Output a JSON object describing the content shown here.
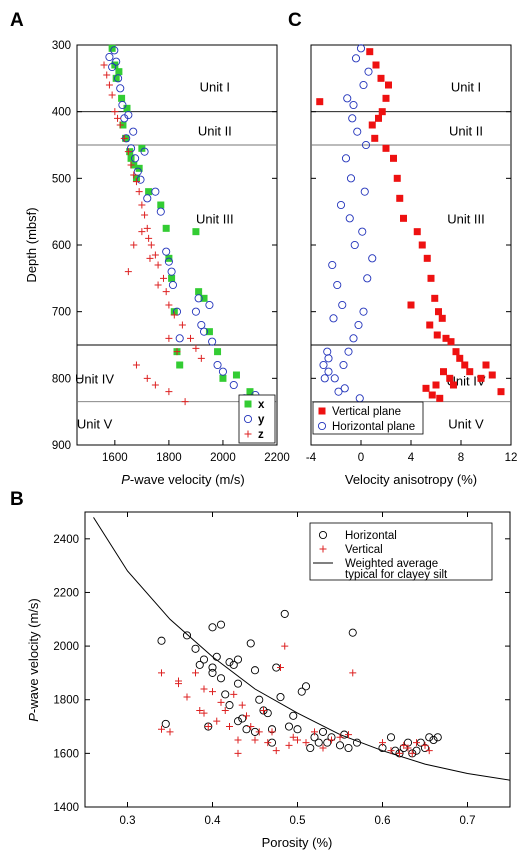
{
  "panels": {
    "A": {
      "letter": "A"
    },
    "C": {
      "letter": "C"
    },
    "B": {
      "letter": "B"
    }
  },
  "chart_data": [
    {
      "id": "A",
      "type": "scatter",
      "title": "",
      "xlabel_italic": "P",
      "xlabel_rest": "-wave velocity (m/s)",
      "ylabel": "Depth (mbsf)",
      "xlim": [
        1460,
        2200
      ],
      "ylim": [
        900,
        300
      ],
      "x_ticks": [
        1600,
        1800,
        2000,
        2200
      ],
      "y_ticks": [
        300,
        400,
        500,
        600,
        700,
        800,
        900
      ],
      "grid": false,
      "legend_position": "bottom-right",
      "unit_boundaries": [
        400,
        450,
        750,
        835
      ],
      "units": [
        {
          "label": "Unit I",
          "x": 1970,
          "y": 362
        },
        {
          "label": "Unit II",
          "x": 1970,
          "y": 428
        },
        {
          "label": "Unit III",
          "x": 1970,
          "y": 560
        },
        {
          "label": "Unit IV",
          "x": 1525,
          "y": 800
        },
        {
          "label": "Unit V",
          "x": 1525,
          "y": 868
        }
      ],
      "series": [
        {
          "name": "x",
          "marker": "square",
          "color": "#33cc33",
          "x": [
            1590,
            1600,
            1605,
            1615,
            1625,
            1630,
            1640,
            1645,
            1655,
            1660,
            1670,
            1680,
            1690,
            1700,
            1725,
            1770,
            1790,
            1800,
            1810,
            1820,
            1830,
            1840,
            1900,
            1910,
            1930,
            1950,
            1980,
            2000,
            2050,
            2100
          ],
          "y": [
            305,
            330,
            350,
            340,
            380,
            420,
            440,
            395,
            460,
            470,
            480,
            500,
            485,
            455,
            520,
            540,
            575,
            620,
            650,
            700,
            760,
            780,
            580,
            670,
            680,
            730,
            760,
            800,
            795,
            820
          ]
        },
        {
          "name": "y",
          "marker": "circle",
          "color": "#2233bb",
          "x": [
            1580,
            1590,
            1598,
            1605,
            1612,
            1620,
            1628,
            1635,
            1642,
            1650,
            1660,
            1668,
            1675,
            1685,
            1695,
            1710,
            1720,
            1750,
            1770,
            1790,
            1800,
            1810,
            1815,
            1830,
            1840,
            1900,
            1910,
            1920,
            1930,
            1950,
            1960,
            1980,
            2000,
            2040,
            2080,
            2120
          ],
          "y": [
            318,
            333,
            308,
            325,
            350,
            365,
            390,
            410,
            440,
            405,
            455,
            430,
            470,
            490,
            502,
            460,
            530,
            520,
            550,
            610,
            625,
            640,
            660,
            700,
            740,
            700,
            680,
            720,
            730,
            690,
            745,
            780,
            790,
            810,
            830,
            825
          ]
        },
        {
          "name": "z",
          "marker": "plus",
          "color": "#dd2222",
          "x": [
            1560,
            1570,
            1580,
            1590,
            1600,
            1610,
            1620,
            1635,
            1650,
            1660,
            1670,
            1680,
            1690,
            1700,
            1710,
            1720,
            1725,
            1735,
            1750,
            1760,
            1780,
            1790,
            1800,
            1820,
            1850,
            1880,
            1900,
            1920,
            1650,
            1670,
            1700,
            1730,
            1760,
            1800,
            1830,
            1680,
            1720,
            1750,
            1800,
            1860
          ],
          "y": [
            330,
            345,
            360,
            375,
            400,
            410,
            420,
            440,
            460,
            480,
            495,
            505,
            520,
            540,
            555,
            575,
            590,
            600,
            615,
            630,
            650,
            670,
            690,
            705,
            720,
            740,
            755,
            770,
            640,
            600,
            580,
            620,
            660,
            740,
            760,
            780,
            800,
            810,
            820,
            835
          ]
        }
      ]
    },
    {
      "id": "C",
      "type": "scatter",
      "title": "",
      "xlabel": "Velocity anisotropy (%)",
      "xlim": [
        -4,
        12
      ],
      "ylim": [
        900,
        300
      ],
      "x_ticks": [
        -4,
        0,
        4,
        8,
        12
      ],
      "grid": false,
      "legend_position": "bottom-left",
      "unit_boundaries": [
        400,
        450,
        750,
        835
      ],
      "units": [
        {
          "label": "Unit I",
          "x": 8.4,
          "y": 362
        },
        {
          "label": "Unit II",
          "x": 8.4,
          "y": 428
        },
        {
          "label": "Unit III",
          "x": 8.4,
          "y": 560
        },
        {
          "label": "Unit IV",
          "x": 8.4,
          "y": 803
        },
        {
          "label": "Unit V",
          "x": 8.4,
          "y": 868
        }
      ],
      "series": [
        {
          "name": "Vertical plane",
          "marker": "square",
          "color": "#ee1111",
          "x": [
            -3.3,
            0.7,
            1.2,
            1.6,
            2.2,
            2.0,
            1.4,
            0.9,
            1.1,
            1.7,
            2.0,
            2.6,
            2.9,
            3.1,
            3.4,
            4.5,
            4.9,
            5.3,
            5.6,
            5.9,
            6.2,
            6.5,
            6.8,
            7.2,
            7.6,
            7.9,
            8.3,
            8.7,
            9.6,
            10.0,
            10.5,
            11.2,
            6.0,
            5.2,
            5.7,
            6.3,
            6.6,
            7.1,
            7.4,
            5.5,
            6.1,
            4.0
          ],
          "y": [
            385,
            310,
            330,
            350,
            360,
            380,
            410,
            420,
            440,
            400,
            455,
            470,
            500,
            530,
            560,
            580,
            600,
            620,
            650,
            680,
            700,
            710,
            740,
            745,
            760,
            770,
            780,
            790,
            800,
            780,
            795,
            820,
            810,
            815,
            825,
            830,
            790,
            800,
            810,
            720,
            735,
            690
          ]
        },
        {
          "name": "Horizontal plane",
          "marker": "circle",
          "color": "#2233bb",
          "x": [
            -2.6,
            -2.1,
            -1.8,
            -1.4,
            -1.0,
            -0.6,
            -0.2,
            0.2,
            0.5,
            0.9,
            -0.5,
            0.1,
            -0.9,
            -1.6,
            -2.3,
            -2.9,
            -1.2,
            0.4,
            -0.3,
            -0.7,
            -1.9,
            -2.6,
            -1.1,
            0.2,
            0.6,
            -0.4,
            -1.5,
            -2.2,
            -0.8,
            0.3,
            -0.1,
            -1.3,
            -2.7,
            -3.0,
            -0.6,
            0.0
          ],
          "y": [
            790,
            800,
            820,
            780,
            760,
            740,
            720,
            700,
            650,
            620,
            600,
            580,
            560,
            540,
            630,
            800,
            470,
            450,
            430,
            410,
            660,
            770,
            380,
            360,
            340,
            320,
            690,
            710,
            500,
            520,
            830,
            815,
            760,
            780,
            390,
            305
          ]
        }
      ]
    },
    {
      "id": "B",
      "type": "scatter",
      "title": "",
      "xlabel": "Porosity (%)",
      "ylabel_italic": "P",
      "ylabel_rest": "-wave velocity (m/s)",
      "xlim": [
        0.25,
        0.75
      ],
      "ylim": [
        1400,
        2500
      ],
      "x_ticks": [
        0.3,
        0.4,
        0.5,
        0.6,
        0.7
      ],
      "y_ticks": [
        1400,
        1600,
        1800,
        2000,
        2200,
        2400
      ],
      "grid": false,
      "legend_position": "top-right",
      "series": [
        {
          "name": "Horizontal",
          "marker": "circle",
          "color": "#000000",
          "x": [
            0.34,
            0.345,
            0.37,
            0.38,
            0.385,
            0.39,
            0.395,
            0.4,
            0.4,
            0.405,
            0.41,
            0.415,
            0.42,
            0.42,
            0.425,
            0.43,
            0.43,
            0.435,
            0.44,
            0.445,
            0.45,
            0.45,
            0.455,
            0.46,
            0.465,
            0.47,
            0.475,
            0.48,
            0.485,
            0.49,
            0.495,
            0.5,
            0.505,
            0.51,
            0.515,
            0.52,
            0.525,
            0.53,
            0.535,
            0.54,
            0.55,
            0.555,
            0.56,
            0.565,
            0.57,
            0.6,
            0.61,
            0.615,
            0.62,
            0.625,
            0.63,
            0.635,
            0.64,
            0.645,
            0.65,
            0.655,
            0.66,
            0.665,
            0.4,
            0.41,
            0.43,
            0.47
          ],
          "y": [
            2020,
            1710,
            2040,
            1990,
            1930,
            1950,
            1700,
            1900,
            2070,
            1960,
            1880,
            1820,
            1780,
            1940,
            1930,
            1950,
            1860,
            1730,
            1690,
            2010,
            1680,
            1910,
            1800,
            1760,
            1750,
            1690,
            1920,
            1810,
            2120,
            1700,
            1740,
            1690,
            1830,
            1850,
            1620,
            1660,
            1640,
            1680,
            1640,
            1660,
            1630,
            1670,
            1620,
            2050,
            1640,
            1620,
            1660,
            1610,
            1600,
            1620,
            1640,
            1600,
            1610,
            1640,
            1620,
            1660,
            1650,
            1660,
            1920,
            2080,
            1720,
            1640
          ]
        },
        {
          "name": "Vertical",
          "marker": "plus",
          "color": "#dd2222",
          "x": [
            0.34,
            0.35,
            0.36,
            0.37,
            0.38,
            0.385,
            0.39,
            0.395,
            0.4,
            0.405,
            0.41,
            0.415,
            0.42,
            0.425,
            0.43,
            0.435,
            0.44,
            0.445,
            0.45,
            0.455,
            0.46,
            0.465,
            0.47,
            0.475,
            0.48,
            0.485,
            0.49,
            0.495,
            0.5,
            0.51,
            0.52,
            0.53,
            0.54,
            0.55,
            0.56,
            0.565,
            0.6,
            0.61,
            0.62,
            0.625,
            0.63,
            0.635,
            0.64,
            0.65,
            0.655,
            0.34,
            0.36,
            0.39,
            0.43
          ],
          "y": [
            1900,
            1680,
            1860,
            1810,
            1900,
            1760,
            1840,
            1700,
            1830,
            1720,
            1790,
            1760,
            1700,
            1820,
            1650,
            1780,
            1740,
            1700,
            1650,
            1680,
            1760,
            1640,
            1680,
            1610,
            1920,
            2000,
            1630,
            1660,
            1650,
            1640,
            1680,
            1620,
            1650,
            1660,
            1670,
            1900,
            1640,
            1610,
            1600,
            1630,
            1620,
            1600,
            1640,
            1630,
            1610,
            1690,
            1870,
            1750,
            1600
          ]
        },
        {
          "name": "Weighted average typical for clayey silt",
          "type": "line",
          "color": "#000000",
          "x": [
            0.26,
            0.3,
            0.35,
            0.4,
            0.45,
            0.5,
            0.55,
            0.6,
            0.65,
            0.7,
            0.75
          ],
          "y": [
            2480,
            2280,
            2100,
            1960,
            1840,
            1750,
            1670,
            1610,
            1560,
            1525,
            1500
          ]
        }
      ],
      "legend": {
        "items": [
          "Horizontal",
          "Vertical",
          "Weighted average"
        ],
        "line2": "typical for clayey silt"
      }
    }
  ]
}
